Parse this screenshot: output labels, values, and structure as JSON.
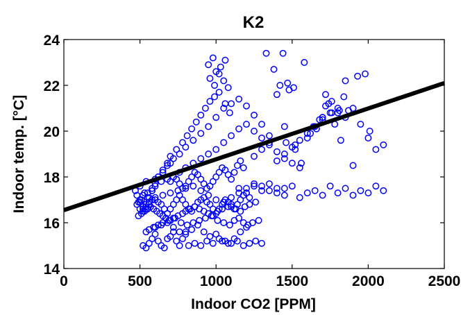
{
  "chart_data": {
    "type": "scatter",
    "title": "K2",
    "xlabel": "Indoor CO2 [PPM]",
    "ylabel": "Indoor temp. [°C]",
    "xlim": [
      0,
      2500
    ],
    "ylim": [
      14,
      24
    ],
    "xticks": [
      0,
      500,
      1000,
      1500,
      2000,
      2500
    ],
    "yticks": [
      14,
      16,
      18,
      20,
      22,
      24
    ],
    "grid": false,
    "legend": "none",
    "marker": "open-circle",
    "marker_color": "#0000ff",
    "fit_line": {
      "color": "#000000",
      "points": [
        [
          0,
          16.55
        ],
        [
          2500,
          22.1
        ]
      ]
    },
    "series": [
      {
        "x": [
          470,
          480,
          490,
          500,
          510,
          520,
          530,
          540,
          550,
          560,
          580,
          600,
          620,
          650,
          680,
          700,
          720,
          760,
          800,
          850,
          900,
          950,
          1000,
          1050,
          1100,
          1150,
          1200,
          1250,
          1300,
          480,
          500,
          520,
          540,
          560,
          600,
          650,
          700,
          750,
          800,
          850,
          900,
          950,
          1000,
          1050,
          1100,
          1150,
          1200,
          1250,
          1300,
          1350,
          1400,
          1450,
          500,
          520,
          550,
          580,
          600,
          640,
          680,
          720,
          760,
          800,
          850,
          900,
          950,
          1000,
          1050,
          1100,
          1150,
          1200,
          1250,
          1300,
          1350,
          1400,
          1450,
          1500,
          1550,
          490,
          510,
          530,
          550,
          570,
          590,
          610,
          630,
          650,
          670,
          700,
          720,
          750,
          780,
          800,
          830,
          860,
          890,
          920,
          950,
          980,
          1010,
          1040,
          1080,
          1100,
          1130,
          1160,
          1190,
          1220,
          1260,
          540,
          560,
          590,
          620,
          650,
          690,
          730,
          770,
          810,
          850,
          890,
          930,
          970,
          1010,
          1050,
          1090,
          1120,
          1150,
          1180,
          1210,
          520,
          540,
          560,
          580,
          600,
          620,
          640,
          660,
          680,
          700,
          720,
          740,
          760,
          780,
          800,
          540,
          560,
          580,
          600,
          620,
          650,
          680,
          700,
          740,
          780,
          810,
          840,
          870,
          900,
          930,
          960,
          990,
          1020,
          1060,
          1090,
          600,
          640,
          680,
          720,
          760,
          800,
          840,
          880,
          920,
          960,
          1000,
          1040,
          1080,
          1120,
          1160,
          1200,
          1240,
          1280,
          500,
          520,
          540,
          560,
          580,
          600,
          620,
          640,
          660,
          680,
          700,
          720,
          740,
          760,
          780,
          800,
          820,
          840,
          860,
          880,
          900,
          920,
          940,
          960,
          980,
          1000,
          1020,
          1040,
          1060,
          1080,
          1100,
          1120,
          1140,
          1160,
          1180,
          1200,
          1220,
          820,
          860,
          900,
          940,
          980,
          1020,
          1060,
          1100,
          1140,
          1180,
          1220,
          1260,
          1300,
          700,
          720,
          740,
          760,
          780,
          800,
          820,
          840,
          860,
          880,
          900,
          920,
          940,
          960,
          980,
          1000,
          1020,
          1040,
          1060,
          1080,
          1100,
          1120,
          1140,
          1160,
          1180,
          950,
          980,
          1000,
          1030,
          1060,
          960,
          990,
          1020,
          1050,
          1080,
          1150,
          1200,
          1250,
          1300,
          1350,
          1400,
          1450,
          1500,
          1550,
          1600,
          1650,
          1700,
          1750,
          1800,
          1850,
          1900,
          1950,
          2000,
          2050,
          2100,
          1330,
          1380,
          1420,
          1440,
          1470,
          1510,
          1580,
          1700,
          1720,
          1760,
          1810,
          1850,
          1900,
          1930,
          1980,
          2010,
          1460,
          1520,
          1560,
          1620,
          1660,
          1700,
          1740,
          1780,
          1820,
          1870,
          1250,
          1300,
          1350,
          1400,
          1450,
          1500,
          1550,
          1600,
          1650,
          1700,
          1750,
          1800,
          1850,
          1350,
          1400,
          1450,
          1480,
          1520,
          1600,
          1640,
          1680,
          1720,
          1760,
          1800,
          1840,
          1900,
          1950,
          2000,
          2050,
          2100
        ],
        "y": [
          17.4,
          17.2,
          16.9,
          17.6,
          17.0,
          16.6,
          17.3,
          17.8,
          17.1,
          16.8,
          17.4,
          17.9,
          18.0,
          18.2,
          18.5,
          18.6,
          18.8,
          19.0,
          19.3,
          19.6,
          19.9,
          20.2,
          20.6,
          21.0,
          21.2,
          21.4,
          21.1,
          20.7,
          20.3,
          16.8,
          16.6,
          16.5,
          16.7,
          16.9,
          17.0,
          17.2,
          17.3,
          17.4,
          17.5,
          17.6,
          17.4,
          17.2,
          17.0,
          16.9,
          17.1,
          17.3,
          17.5,
          17.7,
          17.6,
          17.4,
          17.3,
          17.5,
          17.0,
          17.2,
          17.3,
          17.5,
          17.6,
          17.8,
          17.9,
          18.0,
          18.2,
          18.4,
          18.6,
          18.8,
          19.0,
          19.2,
          19.5,
          19.8,
          20.1,
          20.3,
          20.0,
          19.7,
          19.4,
          19.1,
          18.8,
          18.6,
          18.4,
          16.3,
          16.4,
          16.5,
          16.6,
          16.7,
          16.6,
          16.5,
          16.4,
          16.3,
          16.2,
          16.1,
          16.2,
          16.3,
          16.4,
          16.5,
          16.6,
          16.7,
          16.6,
          16.5,
          16.4,
          16.3,
          16.5,
          16.6,
          16.7,
          16.8,
          16.6,
          16.5,
          16.7,
          16.8,
          16.9,
          15.6,
          15.7,
          15.8,
          15.9,
          16.0,
          16.1,
          16.2,
          16.0,
          15.9,
          16.0,
          16.1,
          16.2,
          16.3,
          16.1,
          16.0,
          15.9,
          16.1,
          16.2,
          16.0,
          15.9,
          15.0,
          14.9,
          15.1,
          15.3,
          15.5,
          15.2,
          15.0,
          14.9,
          15.3,
          15.4,
          15.6,
          15.2,
          15.0,
          15.3,
          15.6,
          16.8,
          17.1,
          17.4,
          17.7,
          18.0,
          18.3,
          18.6,
          18.9,
          19.2,
          19.5,
          19.8,
          20.1,
          20.4,
          20.7,
          21.0,
          21.3,
          21.5,
          21.7,
          21.2,
          20.8,
          15.8,
          15.9,
          16.0,
          15.8,
          15.6,
          15.5,
          15.7,
          15.9,
          15.6,
          15.4,
          15.5,
          15.2,
          15.1,
          15.3,
          15.6,
          15.8,
          16.0,
          16.1,
          16.9,
          16.7,
          16.6,
          16.8,
          17.0,
          17.1,
          16.9,
          16.8,
          16.6,
          16.4,
          16.6,
          16.8,
          17.0,
          17.2,
          17.0,
          16.8,
          16.6,
          16.5,
          16.7,
          16.9,
          17.0,
          17.1,
          16.9,
          16.8,
          16.6,
          16.4,
          16.6,
          16.8,
          17.0,
          16.9,
          16.7,
          16.6,
          16.8,
          17.0,
          17.2,
          17.3,
          17.1,
          15.0,
          15.1,
          15.0,
          15.2,
          15.1,
          15.3,
          15.2,
          15.1,
          15.2,
          15.0,
          15.1,
          15.2,
          15.1,
          17.8,
          18.0,
          17.9,
          17.7,
          17.5,
          17.6,
          17.8,
          18.0,
          18.2,
          18.1,
          17.9,
          17.7,
          17.5,
          17.6,
          17.8,
          18.0,
          18.2,
          18.4,
          18.3,
          18.1,
          17.9,
          18.2,
          18.5,
          18.7,
          18.4,
          22.9,
          23.2,
          22.6,
          22.8,
          23.1,
          22.3,
          22.0,
          22.5,
          22.2,
          21.9,
          17.5,
          17.3,
          17.6,
          17.4,
          17.7,
          17.5,
          17.2,
          17.6,
          17.1,
          17.3,
          17.4,
          17.2,
          17.6,
          17.3,
          17.5,
          17.2,
          17.4,
          17.3,
          17.6,
          17.4,
          23.4,
          22.7,
          22.0,
          23.4,
          22.1,
          21.9,
          23.0,
          20.6,
          21.6,
          20.8,
          20.9,
          22.2,
          21.0,
          22.4,
          22.5,
          20.0,
          19.5,
          19.2,
          18.6,
          19.9,
          20.1,
          20.6,
          21.2,
          20.3,
          19.6,
          20.9,
          18.9,
          19.2,
          19.5,
          18.7,
          19.0,
          19.3,
          19.6,
          19.9,
          20.2,
          20.5,
          20.8,
          21.0,
          20.6,
          19.8,
          21.6,
          20.2,
          21.8,
          19.4,
          19.7,
          20.2,
          20.5,
          21.1,
          21.3,
          20.8,
          21.5,
          18.5,
          20.3,
          19.7,
          19.2,
          19.4
        ]
      }
    ]
  }
}
